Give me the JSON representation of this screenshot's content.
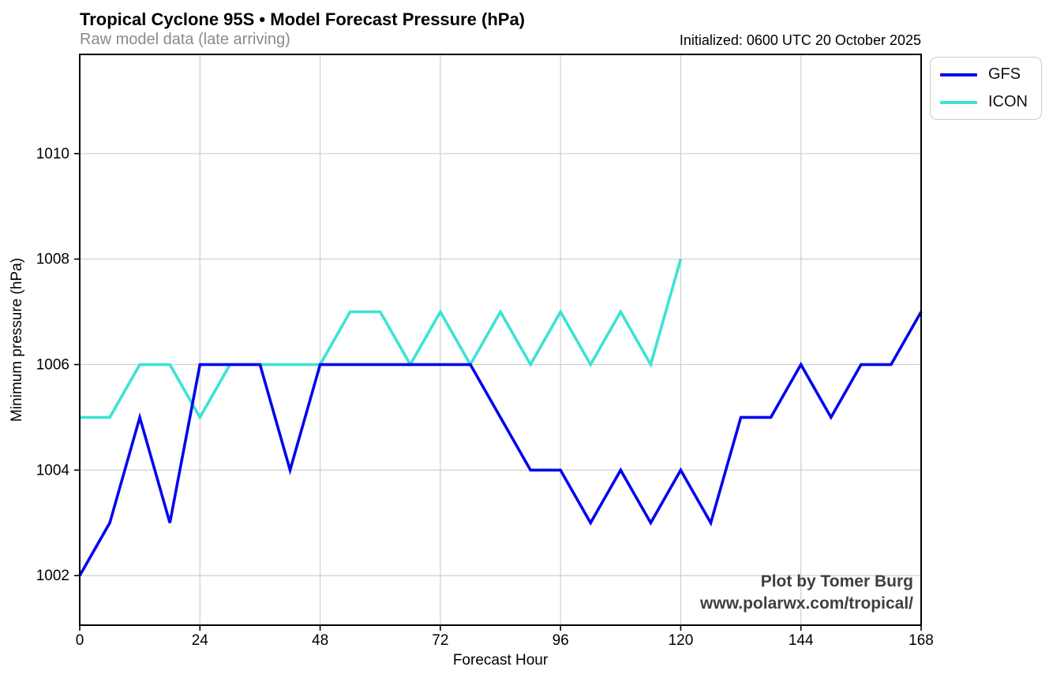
{
  "header": {
    "title": "Tropical Cyclone 95S • Model Forecast Pressure (hPa)",
    "subtitle": "Raw model data (late arriving)",
    "initialized": "Initialized: 0600 UTC 20 October 2025"
  },
  "watermark": {
    "line1": "Plot by Tomer Burg",
    "line2": "www.polarwx.com/tropical/"
  },
  "colors": {
    "gfs": "#0404ee",
    "icon": "#3ce2d6",
    "grid": "#cfcfcf",
    "spine": "#000000",
    "subtitle_gray": "#8a8a8a",
    "credit_gray": "#3f3f3f"
  },
  "chart_data": {
    "type": "line",
    "title": "Tropical Cyclone 95S • Model Forecast Pressure (hPa)",
    "xlabel": "Forecast Hour",
    "ylabel": "Minimum pressure (hPa)",
    "xlim": [
      0,
      168
    ],
    "ylim": [
      1001.06,
      1011.88
    ],
    "xticks": [
      0,
      24,
      48,
      72,
      96,
      120,
      144,
      168
    ],
    "yticks": [
      1002,
      1004,
      1006,
      1008,
      1010
    ],
    "grid": true,
    "legend_position": "top-right-outside",
    "series": [
      {
        "name": "GFS",
        "color": "#0404ee",
        "x": [
          0,
          6,
          12,
          18,
          24,
          30,
          36,
          42,
          48,
          54,
          60,
          66,
          72,
          78,
          84,
          90,
          96,
          102,
          108,
          114,
          120,
          126,
          132,
          138,
          144,
          150,
          156,
          162,
          168
        ],
        "values": [
          1002,
          1003,
          1005,
          1003,
          1006,
          1006,
          1006,
          1004,
          1006,
          1006,
          1006,
          1006,
          1006,
          1006,
          1005,
          1004,
          1004,
          1003,
          1004,
          1003,
          1004,
          1003,
          1005,
          1005,
          1006,
          1005,
          1006,
          1006,
          1007
        ]
      },
      {
        "name": "ICON",
        "color": "#3ce2d6",
        "x": [
          0,
          6,
          12,
          18,
          24,
          30,
          36,
          42,
          48,
          54,
          60,
          66,
          72,
          78,
          84,
          90,
          96,
          102,
          108,
          114,
          120
        ],
        "values": [
          1005,
          1005,
          1006,
          1006,
          1005,
          1006,
          1006,
          1006,
          1006,
          1007,
          1007,
          1006,
          1007,
          1006,
          1007,
          1006,
          1007,
          1006,
          1007,
          1006,
          1008
        ]
      }
    ]
  }
}
